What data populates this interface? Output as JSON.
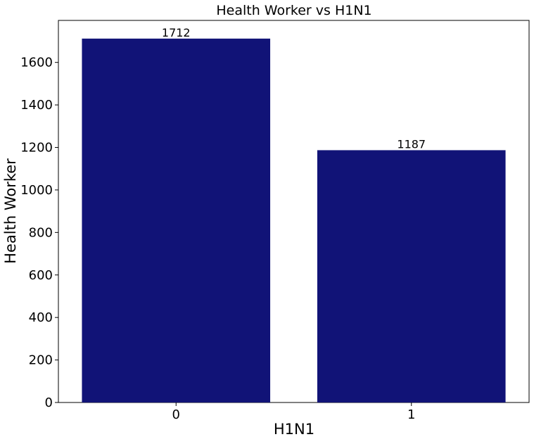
{
  "chart_data": {
    "type": "bar",
    "title": "Health Worker vs H1N1",
    "xlabel": "H1N1",
    "ylabel": "Health Worker",
    "categories": [
      "0",
      "1"
    ],
    "values": [
      1712,
      1187
    ],
    "data_labels": [
      "1712",
      "1187"
    ],
    "yticks": [
      0,
      200,
      400,
      600,
      800,
      1000,
      1200,
      1400,
      1600
    ],
    "ylim": [
      0,
      1797.6
    ],
    "bar_color": "#111377",
    "grid": false,
    "legend": "none"
  }
}
